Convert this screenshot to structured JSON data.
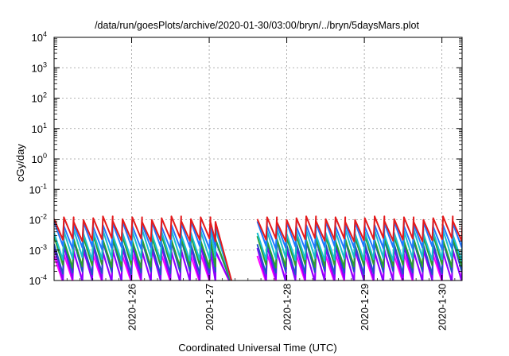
{
  "chart_data": {
    "type": "line",
    "title": "/data/run/goesPlots/archive/2020-01-30/03:00/bryn/../bryn/5daysMars.plot",
    "xlabel": "Coordinated Universal Time (UTC)",
    "ylabel": "cGy/day",
    "y_scale": "log",
    "ylim": [
      0.0001,
      10000
    ],
    "xlim_days": [
      0,
      5.26
    ],
    "y_ticks": [
      {
        "value": 0.0001,
        "base": "10",
        "exp": "-4"
      },
      {
        "value": 0.001,
        "base": "10",
        "exp": "-3"
      },
      {
        "value": 0.01,
        "base": "10",
        "exp": "-2"
      },
      {
        "value": 0.1,
        "base": "10",
        "exp": "-1"
      },
      {
        "value": 1,
        "base": "10",
        "exp": "0"
      },
      {
        "value": 10,
        "base": "10",
        "exp": "1"
      },
      {
        "value": 100,
        "base": "10",
        "exp": "2"
      },
      {
        "value": 1000,
        "base": "10",
        "exp": "3"
      },
      {
        "value": 10000,
        "base": "10",
        "exp": "4"
      }
    ],
    "x_ticks": [
      {
        "label": "2020-1-26",
        "day": 1.0
      },
      {
        "label": "2020-1-27",
        "day": 2.0
      },
      {
        "label": "2020-1-28",
        "day": 3.0
      },
      {
        "label": "2020-1-29",
        "day": 4.0
      },
      {
        "label": "2020-1-30",
        "day": 5.0
      }
    ],
    "grid": true,
    "data_gap_days": [
      2.08,
      2.62
    ],
    "series": [
      {
        "color": "#e41a1c",
        "peak": 0.0105,
        "trough": 0.0022,
        "sawtooth_period_days": 0.126
      },
      {
        "color": "#1f77ff",
        "peak": 0.0072,
        "trough": 0.0012,
        "sawtooth_period_days": 0.126
      },
      {
        "color": "#17becf",
        "peak": 0.004,
        "trough": 0.0005,
        "sawtooth_period_days": 0.126
      },
      {
        "color": "#2ca02c",
        "peak": 0.0025,
        "trough": 0.0003,
        "sawtooth_period_days": 0.126
      },
      {
        "color": "#2050c8",
        "peak": 0.0018,
        "trough": 0.00018,
        "sawtooth_period_days": 0.126
      },
      {
        "color": "#8b00ff",
        "peak": 0.0011,
        "trough": 0.0001,
        "sawtooth_period_days": 0.126
      },
      {
        "color": "#ff00ff",
        "peak": 0.0008,
        "trough": 0.0001,
        "sawtooth_period_days": 0.126
      }
    ]
  }
}
